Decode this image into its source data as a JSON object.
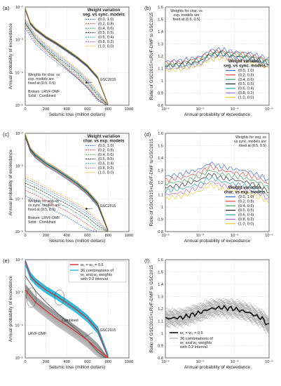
{
  "chart_data": [
    {
      "panel": "(a)",
      "type": "line",
      "xlabel": "Seismic loss (million dollars)",
      "ylabel": "Annual probability of exceedance",
      "xlim": [
        0,
        1000
      ],
      "ylim": [
        1e-05,
        0.01
      ],
      "yscale": "log",
      "xticks": [
        "0",
        "200",
        "400",
        "600",
        "800",
        "1000"
      ],
      "yticks": [
        "10⁻⁵",
        "10⁻⁴",
        "10⁻³",
        "10⁻²"
      ],
      "legend_title": [
        "Weight variation",
        "seg. vs sync. models"
      ],
      "legend": [
        "(0.0, 1.0)",
        "(0.2, 0.8)",
        "(0.4, 0.6)",
        "(0.5, 0.5)",
        "(0.6, 0.4)",
        "(0.8, 0.2)",
        "(1.0, 0.0)"
      ],
      "annotations": [
        "GSC2015",
        "Weights for char. vs",
        "exp. models are",
        "fixed at (0.5, 0.5)"
      ],
      "style_note": [
        "Broken: LRVF-DMF",
        "Solid   : Combined"
      ],
      "series_groups": [
        {
          "style": "broken",
          "x": [
            0,
            100,
            200,
            300,
            400,
            500,
            600,
            700,
            800
          ],
          "y": [
            0.0034,
            0.0011,
            0.00056,
            0.00031,
            0.00018,
            0.0001,
            5e-05,
            2e-05,
            5e-06
          ]
        },
        {
          "style": "solid",
          "x": [
            0,
            50,
            100,
            200,
            300,
            400,
            500,
            600,
            700,
            800
          ],
          "y": [
            0.009,
            0.0032,
            0.0021,
            0.0012,
            0.00078,
            0.00048,
            0.00029,
            0.00016,
            7e-05,
            1e-05
          ]
        },
        {
          "style": "reference",
          "x": [
            0,
            100,
            200,
            300,
            400,
            500,
            600,
            700,
            780
          ],
          "y": [
            0.0032,
            0.0011,
            0.0005,
            0.00025,
            0.00013,
            7e-05,
            3.5e-05,
            1.5e-05,
            1e-05
          ]
        }
      ]
    },
    {
      "panel": "(b)",
      "type": "line",
      "xlabel": "Annual probability of exceedance",
      "ylabel": "Ratio of GSC2015+LRVF-DMF to GSC2015",
      "xlim": [
        0.01,
        1e-05
      ],
      "xscale": "log",
      "ylim": [
        0.8,
        1.6
      ],
      "xticks": [
        "10⁻²",
        "10⁻³",
        "10⁻⁴",
        "10⁻⁵"
      ],
      "yticks": [
        "0.8",
        "0.9",
        "1",
        "1.1",
        "1.2",
        "1.3",
        "1.4",
        "1.5",
        "1.6"
      ],
      "legend_title": [
        "Weight variation",
        "seg. vs sync. models"
      ],
      "legend": [
        "(0.0, 1.0)",
        "(0.2, 0.8)",
        "(0.4, 0.6)",
        "(0.5, 0.5)",
        "(0.6, 0.4)",
        "(0.8, 0.2)",
        "(1.0, 0.0)"
      ],
      "annotations": [
        "Weights for char. vs",
        "exp. models are",
        "fixed at (0.5, 0.5)"
      ],
      "x": [
        -2,
        -2.5,
        -3,
        -3.3,
        -3.6,
        -4,
        -4.4,
        -4.8,
        -5
      ],
      "y": [
        1.12,
        1.13,
        1.16,
        1.21,
        1.22,
        1.2,
        1.19,
        1.16,
        1.14
      ]
    },
    {
      "panel": "(c)",
      "type": "line",
      "xlabel": "Seismic loss (million dollars)",
      "ylabel": "Annual probability of exceedance",
      "xlim": [
        0,
        1000
      ],
      "ylim": [
        1e-05,
        0.01
      ],
      "yscale": "log",
      "xticks": [
        "0",
        "200",
        "400",
        "600",
        "800",
        "1000"
      ],
      "yticks": [
        "10⁻⁵",
        "10⁻⁴",
        "10⁻³",
        "10⁻²"
      ],
      "legend_title": [
        "Weight variation",
        "char. vs exp. models"
      ],
      "legend": [
        "(0.0, 1.0)",
        "(0.2, 0.8)",
        "(0.4, 0.6)",
        "(0.5, 0.5)",
        "(0.6, 0.4)",
        "(0.8, 0.2)",
        "(1.0, 0.0)"
      ],
      "annotations": [
        "GSC2015",
        "Weights for seg. vs",
        "vs sync. models are",
        "fixed at (0.5, 0.5)"
      ],
      "style_note": [
        "Broken: LRVF-DMF",
        "Solid   : Combined"
      ],
      "series_groups": [
        {
          "style": "broken",
          "x": [
            0,
            100,
            200,
            300,
            400,
            500,
            600,
            700,
            800
          ],
          "y": [
            0.0003,
            0.00022,
            0.00015,
            0.0001,
            7e-05,
            4.5e-05,
            2.8e-05,
            1.5e-05,
            6e-06
          ]
        },
        {
          "style": "solid",
          "x": [
            0,
            50,
            100,
            200,
            300,
            400,
            500,
            600,
            700,
            800
          ],
          "y": [
            0.009,
            0.0032,
            0.0021,
            0.0012,
            0.00078,
            0.00048,
            0.00029,
            0.00016,
            7e-05,
            1e-05
          ]
        }
      ]
    },
    {
      "panel": "(d)",
      "type": "line",
      "xlabel": "Annual probability of exceedance",
      "ylabel": "Ratio of GSC2015+LRVF-DMF to GSC2015",
      "xlim": [
        0.01,
        1e-05
      ],
      "xscale": "log",
      "ylim": [
        0.8,
        1.6
      ],
      "xticks": [
        "10⁻²",
        "10⁻³",
        "10⁻⁴",
        "10⁻⁵"
      ],
      "yticks": [
        "0.8",
        "0.9",
        "1",
        "1.1",
        "1.2",
        "1.3",
        "1.4",
        "1.5",
        "1.6"
      ],
      "legend_title": [
        "Weight variation",
        "char. vs exp. models"
      ],
      "legend": [
        "(0.0, 1.0)",
        "(0.2, 0.8)",
        "(0.4, 0.6)",
        "(0.5, 0.5)",
        "(0.6, 0.4)",
        "(0.8, 0.2)",
        "(1.0, 0.0)"
      ],
      "annotations": [
        "Weights for seg. vs",
        "vs sync. models are",
        "fixed at (0.5, 0.5)"
      ],
      "x": [
        -2,
        -2.5,
        -3,
        -3.3,
        -3.6,
        -4,
        -4.4,
        -4.8,
        -5
      ],
      "y": [
        1.16,
        1.18,
        1.22,
        1.27,
        1.24,
        1.22,
        1.2,
        1.16,
        1.12
      ]
    },
    {
      "panel": "(e)",
      "type": "line",
      "xlabel": "Seismic loss (million dollars)",
      "ylabel": "Annual probability of exceedance",
      "xlim": [
        0,
        1000
      ],
      "ylim": [
        1e-05,
        0.01
      ],
      "yscale": "log",
      "xticks": [
        "0",
        "200",
        "400",
        "600",
        "800",
        "1000"
      ],
      "yticks": [
        "10⁻⁵",
        "10⁻⁴",
        "10⁻³",
        "10⁻²"
      ],
      "legend": [
        "w₁ = w₂ = 0.5",
        "36 combinations of",
        "w₁ and w₂ weights",
        "with 0.2 interval"
      ],
      "annotations": [
        "Combined",
        "GSC2015",
        "LRVF-DMF"
      ],
      "series_groups": [
        {
          "style": "combined",
          "x": [
            0,
            50,
            100,
            200,
            300,
            400,
            500,
            600,
            700,
            800
          ],
          "y": [
            0.009,
            0.0032,
            0.0021,
            0.0012,
            0.00078,
            0.00048,
            0.00029,
            0.00016,
            7e-05,
            1e-05
          ]
        },
        {
          "style": "lrvf",
          "x": [
            0,
            100,
            200,
            300,
            400,
            500,
            600,
            700,
            800
          ],
          "y": [
            0.0012,
            0.0005,
            0.00028,
            0.00016,
            0.0001,
            6e-05,
            3.5e-05,
            1.8e-05,
            6e-06
          ]
        },
        {
          "style": "reference",
          "x": [
            0,
            100,
            200,
            300,
            400,
            500,
            600,
            700,
            780
          ],
          "y": [
            0.0032,
            0.0011,
            0.0005,
            0.00025,
            0.00013,
            7e-05,
            3.5e-05,
            1.5e-05,
            1e-05
          ]
        }
      ]
    },
    {
      "panel": "(f)",
      "type": "line",
      "xlabel": "Annual probability of exceedance",
      "ylabel": "Ratio of GSC2015+LRVF-DMF to GSC2015",
      "xlim": [
        0.01,
        1e-05
      ],
      "xscale": "log",
      "ylim": [
        0.8,
        1.6
      ],
      "xticks": [
        "10⁻²",
        "10⁻³",
        "10⁻⁴",
        "10⁻⁵"
      ],
      "yticks": [
        "0.8",
        "0.9",
        "1",
        "1.1",
        "1.2",
        "1.3",
        "1.4",
        "1.5",
        "1.6"
      ],
      "legend": [
        "w₁ = w₂ = 0.5",
        "36 combinations of",
        "w₁ and w₂ weights",
        "with 0.2 interval"
      ],
      "x": [
        -2,
        -2.5,
        -3,
        -3.3,
        -3.6,
        -4,
        -4.4,
        -4.8,
        -5
      ],
      "y": [
        1.12,
        1.13,
        1.17,
        1.2,
        1.21,
        1.2,
        1.17,
        1.12,
        1.06
      ]
    }
  ],
  "colors": {
    "weights": [
      "#2b5fd9",
      "#e2382f",
      "#2e9e4a",
      "#111111",
      "#1a9ea0",
      "#a060c8",
      "#e8c020"
    ],
    "gray": "#888888",
    "cyan": "#2ab8d8",
    "red": "#d9262c"
  }
}
